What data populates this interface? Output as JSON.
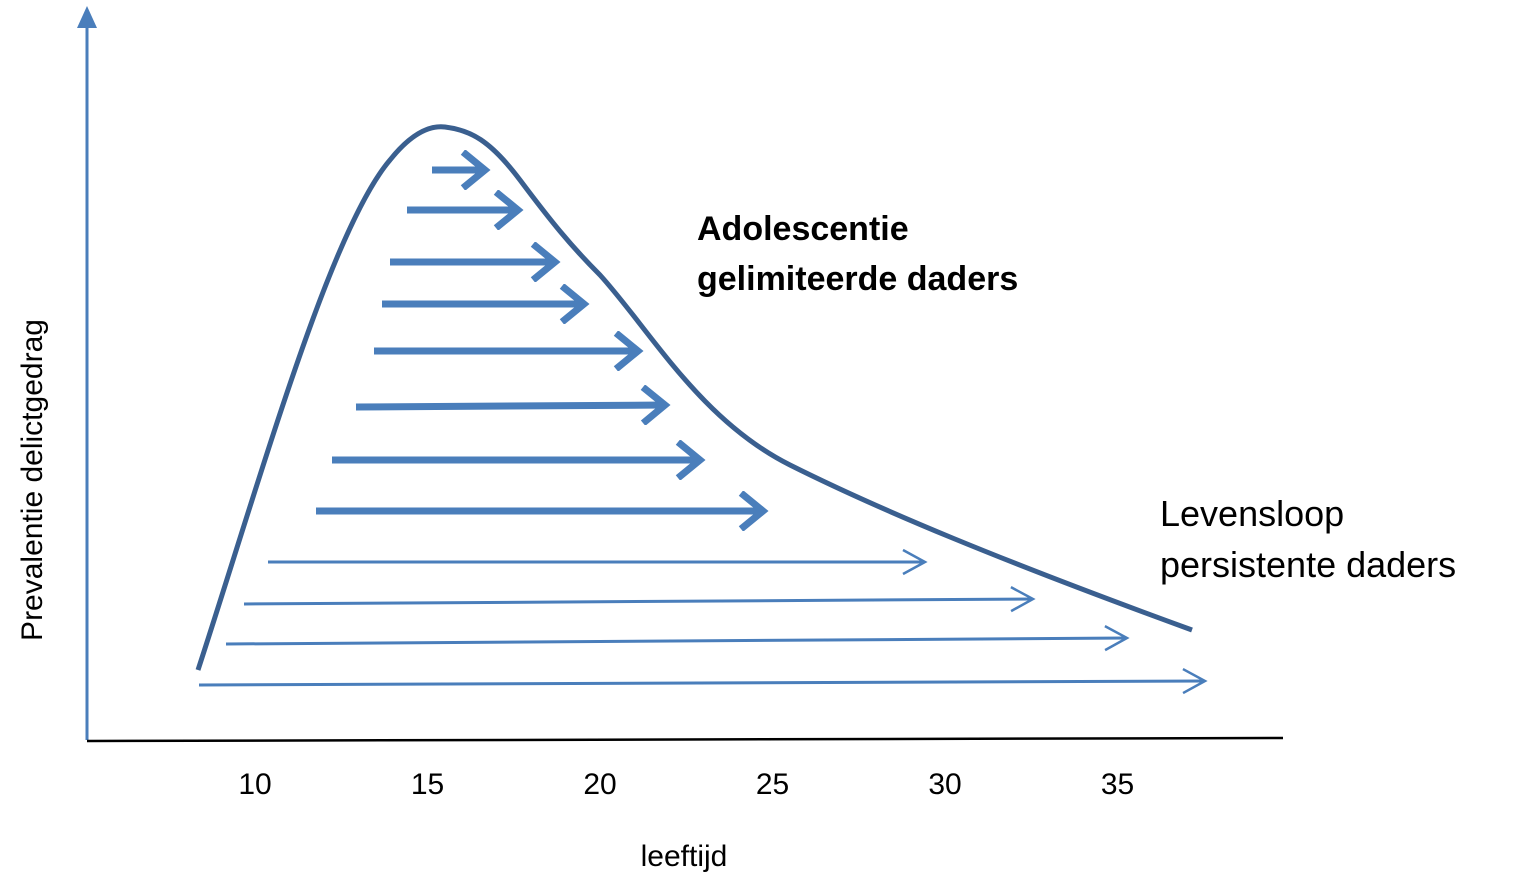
{
  "x_axis": {
    "label": "leeftijd",
    "ticks": [
      "10",
      "15",
      "20",
      "25",
      "30",
      "35"
    ]
  },
  "y_axis": {
    "label": "Prevalentie delictgedrag"
  },
  "annotations": [
    {
      "lines": [
        "Adolescentie",
        "gelimiteerde daders"
      ]
    },
    {
      "lines": [
        "Levensloop",
        "persistente daders"
      ]
    }
  ]
}
